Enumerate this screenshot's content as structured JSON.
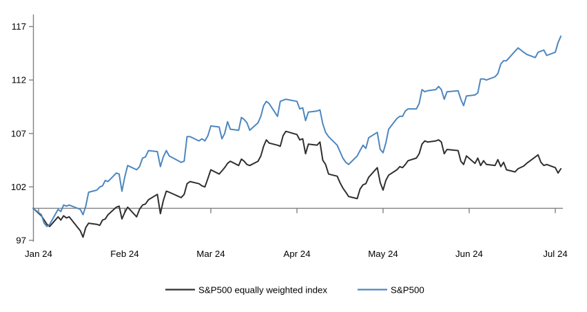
{
  "chart_data": {
    "type": "line",
    "title": "",
    "xlabel": "",
    "ylabel": "",
    "grid": false,
    "legend_position": "bottom-center",
    "x_axis": {
      "tick_labels": [
        "Jan 24",
        "Feb 24",
        "Mar 24",
        "Apr 24",
        "May 24",
        "Jun 24",
        "Jul 24"
      ],
      "unit": "months-from-Jan-2024-start"
    },
    "y_axis": {
      "ticks": [
        97,
        102,
        107,
        112,
        117
      ],
      "range": [
        97,
        118.2
      ],
      "baseline_value": 100
    },
    "colors": {
      "axis": "#808080",
      "baseline": "#808080",
      "tick_text": "#000000",
      "background": "#ffffff"
    },
    "series": [
      {
        "name": "S&P500 equally weighted index",
        "color": "#2F2F2F",
        "points": [
          [
            -0.064,
            100
          ],
          [
            0.032,
            99.3
          ],
          [
            0.065,
            98.9
          ],
          [
            0.097,
            98.5
          ],
          [
            0.129,
            98.3
          ],
          [
            0.226,
            99.2
          ],
          [
            0.258,
            98.9
          ],
          [
            0.29,
            99.3
          ],
          [
            0.323,
            99.1
          ],
          [
            0.355,
            99.2
          ],
          [
            0.484,
            97.9
          ],
          [
            0.516,
            97.3
          ],
          [
            0.548,
            98.2
          ],
          [
            0.581,
            98.6
          ],
          [
            0.677,
            98.5
          ],
          [
            0.71,
            98.4
          ],
          [
            0.742,
            98.9
          ],
          [
            0.774,
            99.0
          ],
          [
            0.806,
            99.4
          ],
          [
            0.903,
            100.1
          ],
          [
            0.935,
            100.2
          ],
          [
            0.968,
            99.0
          ],
          [
            1.0,
            99.6
          ],
          [
            1.034,
            100.1
          ],
          [
            1.138,
            99.2
          ],
          [
            1.172,
            99.9
          ],
          [
            1.207,
            100.3
          ],
          [
            1.241,
            100.4
          ],
          [
            1.276,
            100.8
          ],
          [
            1.379,
            101.3
          ],
          [
            1.414,
            99.5
          ],
          [
            1.448,
            100.7
          ],
          [
            1.483,
            101.6
          ],
          [
            1.517,
            101.5
          ],
          [
            1.655,
            101.0
          ],
          [
            1.69,
            101.3
          ],
          [
            1.724,
            102.3
          ],
          [
            1.759,
            102.5
          ],
          [
            1.862,
            102.3
          ],
          [
            1.897,
            102.1
          ],
          [
            1.931,
            102.0
          ],
          [
            1.966,
            102.8
          ],
          [
            2.0,
            103.6
          ],
          [
            2.097,
            103.2
          ],
          [
            2.129,
            103.5
          ],
          [
            2.161,
            103.8
          ],
          [
            2.194,
            104.2
          ],
          [
            2.226,
            104.4
          ],
          [
            2.323,
            104.0
          ],
          [
            2.355,
            104.6
          ],
          [
            2.387,
            104.4
          ],
          [
            2.419,
            104.1
          ],
          [
            2.452,
            104.0
          ],
          [
            2.548,
            104.4
          ],
          [
            2.581,
            104.9
          ],
          [
            2.613,
            105.8
          ],
          [
            2.645,
            106.4
          ],
          [
            2.677,
            106.1
          ],
          [
            2.774,
            105.9
          ],
          [
            2.806,
            105.8
          ],
          [
            2.839,
            106.8
          ],
          [
            2.871,
            107.2
          ],
          [
            3.0,
            106.9
          ],
          [
            3.033,
            106.4
          ],
          [
            3.067,
            106.5
          ],
          [
            3.1,
            105.1
          ],
          [
            3.133,
            106.0
          ],
          [
            3.233,
            105.9
          ],
          [
            3.267,
            106.2
          ],
          [
            3.3,
            104.5
          ],
          [
            3.333,
            104.1
          ],
          [
            3.367,
            103.2
          ],
          [
            3.467,
            103.0
          ],
          [
            3.5,
            102.4
          ],
          [
            3.533,
            101.9
          ],
          [
            3.567,
            101.5
          ],
          [
            3.6,
            101.1
          ],
          [
            3.7,
            100.9
          ],
          [
            3.733,
            101.8
          ],
          [
            3.767,
            102.2
          ],
          [
            3.8,
            102.3
          ],
          [
            3.833,
            102.9
          ],
          [
            3.933,
            103.8
          ],
          [
            3.967,
            102.4
          ],
          [
            4.0,
            101.7
          ],
          [
            4.032,
            102.6
          ],
          [
            4.065,
            103.1
          ],
          [
            4.161,
            103.6
          ],
          [
            4.194,
            103.9
          ],
          [
            4.226,
            103.8
          ],
          [
            4.258,
            104.1
          ],
          [
            4.29,
            104.45
          ],
          [
            4.387,
            104.7
          ],
          [
            4.419,
            105.1
          ],
          [
            4.452,
            106.0
          ],
          [
            4.484,
            106.3
          ],
          [
            4.516,
            106.2
          ],
          [
            4.613,
            106.3
          ],
          [
            4.645,
            106.4
          ],
          [
            4.677,
            106.2
          ],
          [
            4.71,
            105.1
          ],
          [
            4.742,
            105.5
          ],
          [
            4.871,
            105.4
          ],
          [
            4.903,
            104.4
          ],
          [
            4.935,
            104.1
          ],
          [
            4.968,
            104.9
          ],
          [
            5.067,
            104.2
          ],
          [
            5.1,
            104.7
          ],
          [
            5.133,
            104.0
          ],
          [
            5.167,
            104.45
          ],
          [
            5.2,
            104.1
          ],
          [
            5.3,
            104.0
          ],
          [
            5.333,
            104.55
          ],
          [
            5.367,
            103.9
          ],
          [
            5.4,
            104.3
          ],
          [
            5.433,
            103.6
          ],
          [
            5.533,
            103.4
          ],
          [
            5.567,
            103.7
          ],
          [
            5.633,
            103.95
          ],
          [
            5.667,
            104.2
          ],
          [
            5.767,
            104.8
          ],
          [
            5.8,
            105.0
          ],
          [
            5.833,
            104.3
          ],
          [
            5.867,
            104.0
          ],
          [
            5.9,
            104.1
          ],
          [
            6.0,
            103.8
          ],
          [
            6.032,
            103.3
          ],
          [
            6.065,
            103.7
          ]
        ]
      },
      {
        "name": "S&P500",
        "color": "#4D86BF",
        "points": [
          [
            -0.064,
            100
          ],
          [
            0.032,
            99.4
          ],
          [
            0.065,
            98.6
          ],
          [
            0.097,
            98.3
          ],
          [
            0.129,
            98.5
          ],
          [
            0.226,
            99.9
          ],
          [
            0.258,
            99.7
          ],
          [
            0.29,
            100.3
          ],
          [
            0.323,
            100.2
          ],
          [
            0.355,
            100.3
          ],
          [
            0.484,
            99.9
          ],
          [
            0.516,
            99.4
          ],
          [
            0.548,
            100.2
          ],
          [
            0.581,
            101.5
          ],
          [
            0.677,
            101.7
          ],
          [
            0.71,
            102.0
          ],
          [
            0.742,
            102.1
          ],
          [
            0.774,
            102.6
          ],
          [
            0.806,
            102.5
          ],
          [
            0.903,
            103.3
          ],
          [
            0.935,
            103.2
          ],
          [
            0.968,
            101.6
          ],
          [
            1.0,
            102.9
          ],
          [
            1.034,
            104.0
          ],
          [
            1.138,
            103.6
          ],
          [
            1.172,
            103.9
          ],
          [
            1.207,
            104.7
          ],
          [
            1.241,
            104.8
          ],
          [
            1.276,
            105.4
          ],
          [
            1.379,
            105.3
          ],
          [
            1.414,
            103.9
          ],
          [
            1.448,
            104.8
          ],
          [
            1.483,
            105.4
          ],
          [
            1.517,
            104.9
          ],
          [
            1.655,
            104.3
          ],
          [
            1.69,
            104.4
          ],
          [
            1.724,
            106.7
          ],
          [
            1.759,
            106.7
          ],
          [
            1.862,
            106.3
          ],
          [
            1.897,
            106.5
          ],
          [
            1.931,
            106.3
          ],
          [
            1.966,
            106.8
          ],
          [
            2.0,
            107.7
          ],
          [
            2.097,
            107.6
          ],
          [
            2.129,
            106.5
          ],
          [
            2.161,
            107.0
          ],
          [
            2.194,
            108.1
          ],
          [
            2.226,
            107.4
          ],
          [
            2.323,
            107.3
          ],
          [
            2.355,
            108.5
          ],
          [
            2.387,
            108.3
          ],
          [
            2.419,
            108.0
          ],
          [
            2.452,
            107.3
          ],
          [
            2.548,
            108.0
          ],
          [
            2.581,
            108.6
          ],
          [
            2.613,
            109.6
          ],
          [
            2.645,
            110.0
          ],
          [
            2.677,
            109.8
          ],
          [
            2.774,
            108.6
          ],
          [
            2.806,
            110.0
          ],
          [
            2.839,
            110.1
          ],
          [
            2.871,
            110.2
          ],
          [
            3.0,
            110.0
          ],
          [
            3.033,
            109.3
          ],
          [
            3.067,
            109.4
          ],
          [
            3.1,
            108.2
          ],
          [
            3.133,
            109.0
          ],
          [
            3.233,
            109.1
          ],
          [
            3.267,
            109.2
          ],
          [
            3.3,
            107.9
          ],
          [
            3.333,
            107.1
          ],
          [
            3.367,
            106.7
          ],
          [
            3.467,
            105.9
          ],
          [
            3.5,
            105.3
          ],
          [
            3.533,
            104.7
          ],
          [
            3.567,
            104.3
          ],
          [
            3.6,
            104.1
          ],
          [
            3.7,
            104.9
          ],
          [
            3.733,
            105.4
          ],
          [
            3.767,
            105.9
          ],
          [
            3.8,
            105.6
          ],
          [
            3.833,
            106.6
          ],
          [
            3.933,
            107.1
          ],
          [
            3.967,
            105.5
          ],
          [
            4.0,
            105.2
          ],
          [
            4.032,
            106.1
          ],
          [
            4.065,
            107.4
          ],
          [
            4.161,
            108.4
          ],
          [
            4.194,
            108.6
          ],
          [
            4.226,
            108.6
          ],
          [
            4.258,
            109.1
          ],
          [
            4.29,
            109.3
          ],
          [
            4.387,
            109.3
          ],
          [
            4.419,
            109.8
          ],
          [
            4.452,
            111.1
          ],
          [
            4.484,
            110.9
          ],
          [
            4.516,
            111.0
          ],
          [
            4.613,
            111.1
          ],
          [
            4.645,
            111.4
          ],
          [
            4.677,
            111.1
          ],
          [
            4.71,
            110.2
          ],
          [
            4.742,
            110.9
          ],
          [
            4.871,
            111.0
          ],
          [
            4.903,
            110.2
          ],
          [
            4.935,
            109.6
          ],
          [
            4.968,
            110.5
          ],
          [
            5.067,
            110.6
          ],
          [
            5.1,
            110.8
          ],
          [
            5.133,
            112.1
          ],
          [
            5.167,
            112.1
          ],
          [
            5.2,
            112.0
          ],
          [
            5.3,
            112.3
          ],
          [
            5.333,
            112.6
          ],
          [
            5.367,
            113.5
          ],
          [
            5.4,
            113.8
          ],
          [
            5.433,
            113.8
          ],
          [
            5.533,
            114.7
          ],
          [
            5.567,
            115.0
          ],
          [
            5.633,
            114.6
          ],
          [
            5.667,
            114.4
          ],
          [
            5.767,
            114.1
          ],
          [
            5.8,
            114.6
          ],
          [
            5.833,
            114.7
          ],
          [
            5.867,
            114.8
          ],
          [
            5.9,
            114.3
          ],
          [
            6.0,
            114.6
          ],
          [
            6.032,
            115.5
          ],
          [
            6.065,
            116.1
          ]
        ]
      }
    ]
  }
}
